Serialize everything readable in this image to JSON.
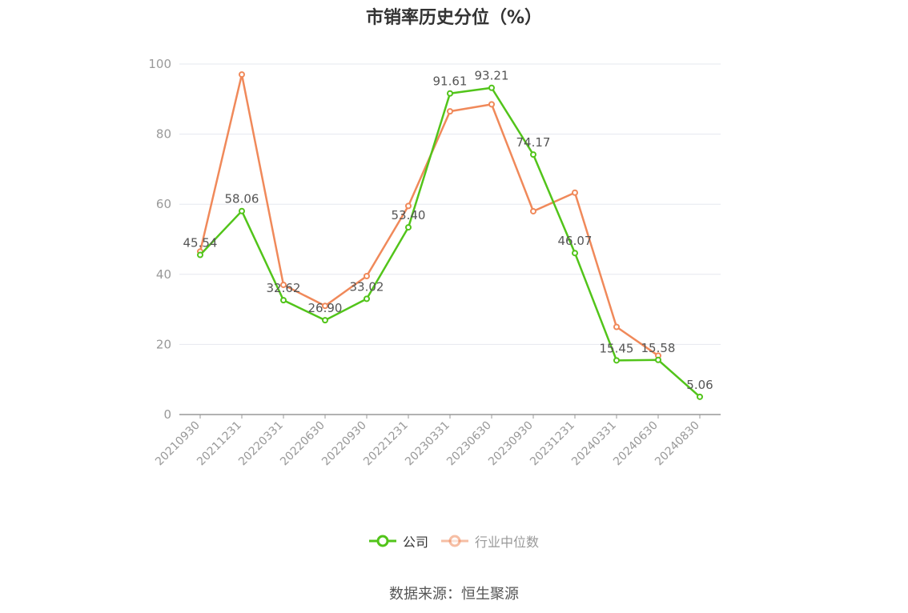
{
  "chart_data": {
    "type": "line",
    "title": "市销率历史分位（%）",
    "categories": [
      "20210930",
      "20211231",
      "20220331",
      "20220630",
      "20220930",
      "20221231",
      "20230331",
      "20230630",
      "20230930",
      "20231231",
      "20240331",
      "20240630",
      "20240830"
    ],
    "ylim": [
      0,
      100
    ],
    "yticks": [
      0,
      20,
      40,
      60,
      80,
      100
    ],
    "grid": true,
    "legend_position": "bottom",
    "series": [
      {
        "name": "公司",
        "color": "#52c41a",
        "values": [
          45.54,
          58.06,
          32.62,
          26.9,
          33.02,
          53.4,
          91.61,
          93.21,
          74.17,
          46.07,
          15.45,
          15.58,
          5.06
        ],
        "labels": [
          "45.54",
          "58.06",
          "32.62",
          "26.90",
          "33.02",
          "53.40",
          "91.61",
          "93.21",
          "74.17",
          "46.07",
          "15.45",
          "15.58",
          "5.06"
        ]
      },
      {
        "name": "行业中位数",
        "color": "#f0895a",
        "values": [
          46.5,
          97.0,
          37.0,
          31.0,
          39.5,
          59.5,
          86.5,
          88.5,
          58.0,
          63.3,
          25.0,
          16.8,
          null
        ]
      }
    ]
  },
  "source": "数据来源：恒生聚源"
}
